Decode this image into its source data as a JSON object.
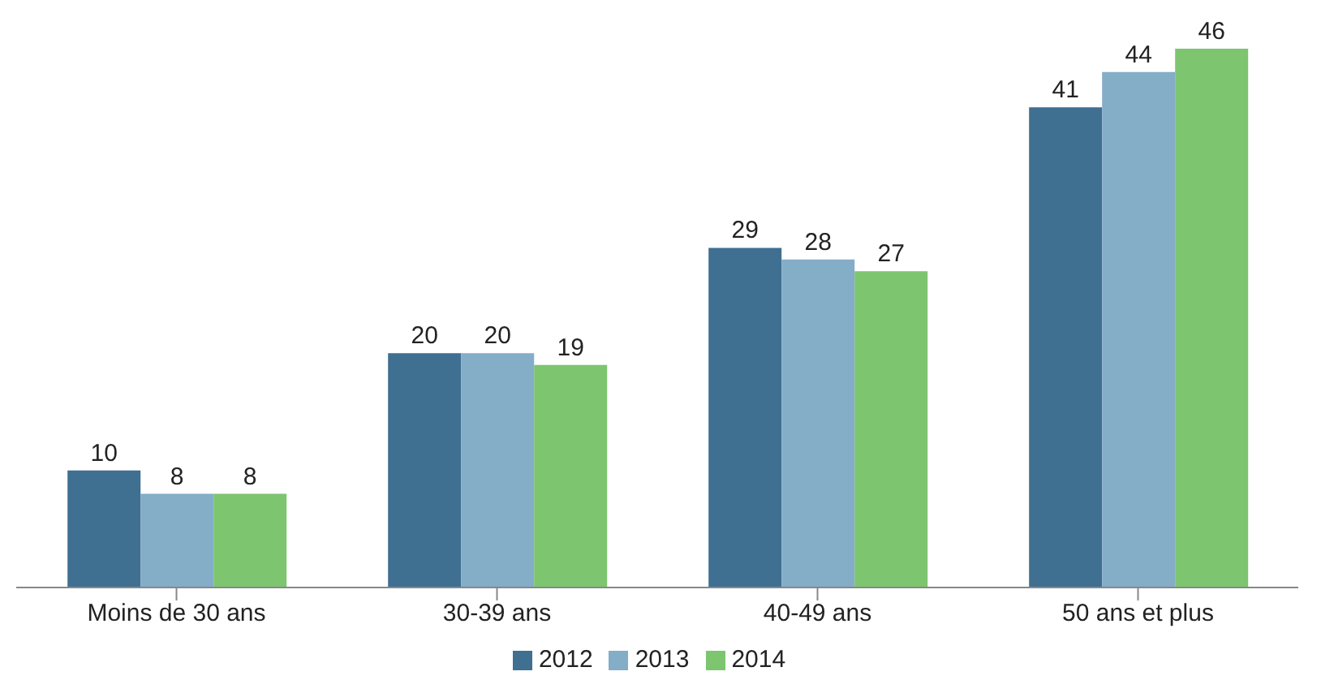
{
  "chart_data": {
    "type": "bar",
    "categories": [
      "Moins de 30 ans",
      "30-39 ans",
      "40-49 ans",
      "50 ans et plus"
    ],
    "series": [
      {
        "name": "2012",
        "color": "#3f6f91",
        "values": [
          10,
          20,
          29,
          41
        ]
      },
      {
        "name": "2013",
        "color": "#84adc8",
        "values": [
          8,
          20,
          28,
          44
        ]
      },
      {
        "name": "2014",
        "color": "#7dc56f",
        "values": [
          8,
          19,
          27,
          46
        ]
      }
    ],
    "tick_labels": "x",
    "data_labels": true,
    "legend": "bottom",
    "grid": false
  }
}
